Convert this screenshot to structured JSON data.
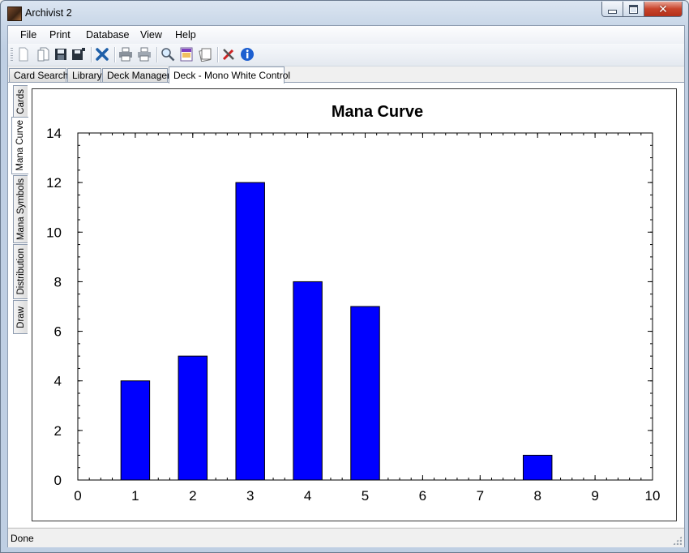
{
  "window": {
    "title": "Archivist 2"
  },
  "menu": {
    "items": [
      "File",
      "Print",
      "Database",
      "View",
      "Help"
    ]
  },
  "toolbar": {
    "icons": [
      "new-icon",
      "open-icon",
      "save-icon",
      "save-all-icon",
      "delete-icon",
      "print-icon",
      "print-preview-icon",
      "search-icon",
      "card-image-icon",
      "deck-icon",
      "tools-icon",
      "info-icon"
    ],
    "colors": {
      "delete": "#1e5fa8",
      "info": "#1d5fd0",
      "tools": "#cc2222"
    }
  },
  "tabs": [
    {
      "label": "Card Search"
    },
    {
      "label": "Library"
    },
    {
      "label": "Deck Manager"
    },
    {
      "label": "Deck - Mono White Control",
      "active": true
    }
  ],
  "side_tabs": [
    {
      "label": "Cards"
    },
    {
      "label": "Mana Curve",
      "active": true
    },
    {
      "label": "Mana Symbols"
    },
    {
      "label": "Distribution"
    },
    {
      "label": "Draw"
    }
  ],
  "status": {
    "text": "Done"
  },
  "chart_data": {
    "type": "bar",
    "title": "Mana Curve",
    "x": [
      1,
      2,
      3,
      4,
      5,
      8
    ],
    "values": [
      4,
      5,
      12,
      8,
      7,
      1
    ],
    "xlim": [
      0,
      10
    ],
    "ylim": [
      0,
      14
    ],
    "xticks": [
      0,
      1,
      2,
      3,
      4,
      5,
      6,
      7,
      8,
      9,
      10
    ],
    "yticks": [
      0,
      2,
      4,
      6,
      8,
      10,
      12,
      14
    ],
    "bar_color": "#0000ff",
    "grid": false,
    "legend": "none"
  }
}
